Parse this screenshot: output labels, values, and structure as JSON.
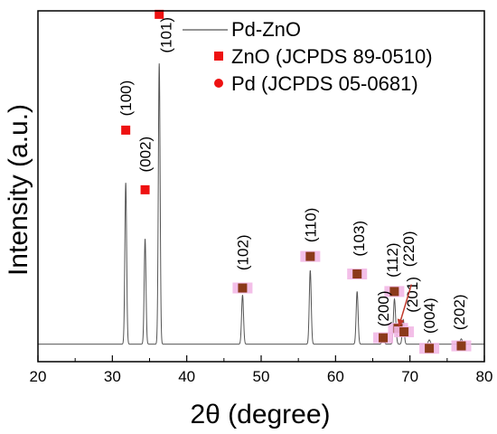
{
  "chart_data": {
    "type": "line",
    "xlabel": "2θ (degree)",
    "ylabel": "Intensity (a.u.)",
    "xlim": [
      20,
      80
    ],
    "xticks": [
      20,
      30,
      40,
      50,
      60,
      70,
      80
    ],
    "ylim": [
      0,
      100
    ],
    "y_ticks_shown": false,
    "grid": false,
    "legend_position": "top-right",
    "series": [
      {
        "name": "Pd-ZnO",
        "color": "#555555",
        "baseline": 5,
        "peaks": [
          {
            "x": 31.8,
            "height": 46,
            "width": 0.12
          },
          {
            "x": 34.4,
            "height": 30,
            "width": 0.12
          },
          {
            "x": 36.3,
            "height": 80,
            "width": 0.12
          },
          {
            "x": 47.5,
            "height": 14,
            "width": 0.13
          },
          {
            "x": 56.6,
            "height": 21,
            "width": 0.13
          },
          {
            "x": 62.9,
            "height": 15,
            "width": 0.13
          },
          {
            "x": 66.4,
            "height": 1.8,
            "width": 0.14
          },
          {
            "x": 67.9,
            "height": 12,
            "width": 0.13
          },
          {
            "x": 68.1,
            "height": 3,
            "width": 0.12
          },
          {
            "x": 69.1,
            "height": 7,
            "width": 0.13
          },
          {
            "x": 72.6,
            "height": 1.2,
            "width": 0.14
          },
          {
            "x": 76.9,
            "height": 1.5,
            "width": 0.14
          }
        ]
      }
    ],
    "legend": [
      {
        "label": "Pd-ZnO",
        "symbol": "line"
      },
      {
        "label": "ZnO (JCPDS 89-0510)",
        "symbol": "square"
      },
      {
        "label": "Pd  (JCPDS 05-0681)",
        "symbol": "circle"
      }
    ],
    "marker_colors": {
      "zno": "#ee1111",
      "overlap": "#8b3a1a",
      "highlight": "#f2b8e6"
    },
    "markers": [
      {
        "x": 31.8,
        "y": 66,
        "type": "zno"
      },
      {
        "x": 34.4,
        "y": 49,
        "type": "zno"
      },
      {
        "x": 36.3,
        "y": 99,
        "type": "zno"
      },
      {
        "x": 47.5,
        "y": 21,
        "type": "overlap"
      },
      {
        "x": 56.6,
        "y": 30,
        "type": "overlap"
      },
      {
        "x": 62.9,
        "y": 25,
        "type": "overlap"
      },
      {
        "x": 66.4,
        "y": 6.8,
        "type": "overlap"
      },
      {
        "x": 67.9,
        "y": 20,
        "type": "overlap"
      },
      {
        "x": 68.4,
        "y": 9.5,
        "type": "overlap"
      },
      {
        "x": 69.2,
        "y": 8.5,
        "type": "overlap"
      },
      {
        "x": 72.6,
        "y": 3.8,
        "type": "overlap"
      },
      {
        "x": 76.9,
        "y": 4.5,
        "type": "overlap"
      }
    ],
    "annotations": [
      {
        "text": "(100)",
        "x": 31.8,
        "y": 70,
        "color": "#000000"
      },
      {
        "text": "(002)",
        "x": 34.4,
        "y": 54,
        "color": "#000000"
      },
      {
        "text": "(101)",
        "x": 37.2,
        "y": 88,
        "color": "#000000"
      },
      {
        "text": "(102)",
        "x": 47.5,
        "y": 26,
        "color": "#000000"
      },
      {
        "text": "(110)",
        "x": 56.6,
        "y": 34,
        "color": "#000000"
      },
      {
        "text": "(103)",
        "x": 63.1,
        "y": 30,
        "color": "#000000"
      },
      {
        "text": "(200)",
        "x": 66.4,
        "y": 10,
        "color": "#000000"
      },
      {
        "text": "(112)",
        "x": 67.6,
        "y": 24,
        "color": "#000000"
      },
      {
        "text": "(220)",
        "x": 69.8,
        "y": 27,
        "color": "#a0301c"
      },
      {
        "text": "(201)",
        "x": 70.3,
        "y": 14,
        "color": "#000000"
      },
      {
        "text": "(004)",
        "x": 72.6,
        "y": 8,
        "color": "#000000"
      },
      {
        "text": "(202)",
        "x": 76.6,
        "y": 9,
        "color": "#000000"
      }
    ],
    "arrow": {
      "from_x": 70.2,
      "from_y": 22,
      "to_x": 68.5,
      "to_y": 10,
      "color": "#c0392b"
    }
  }
}
